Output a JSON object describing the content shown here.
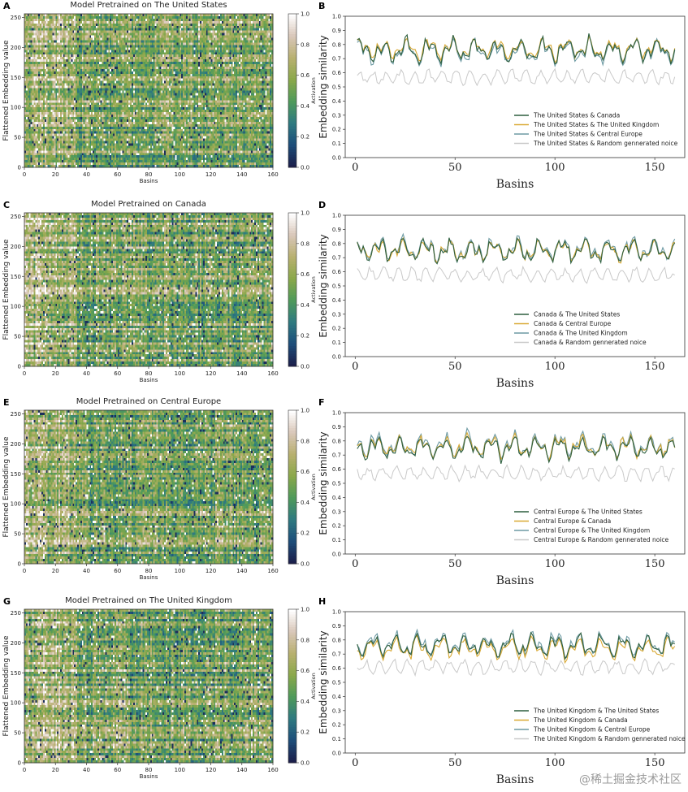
{
  "panels": {
    "heatmaps": [
      {
        "letter": "A",
        "title": "Model Pretrained on The United States"
      },
      {
        "letter": "C",
        "title": "Model Pretrained on Canada"
      },
      {
        "letter": "E",
        "title": "Model Pretrained on Central Europe"
      },
      {
        "letter": "G",
        "title": "Model Pretrained on The United Kingdom"
      }
    ],
    "similarity": [
      {
        "letter": "B"
      },
      {
        "letter": "D"
      },
      {
        "letter": "F"
      },
      {
        "letter": "H"
      }
    ]
  },
  "heatmap_axes": {
    "xlabel": "Basins",
    "ylabel": "Flattened Embedding value",
    "colorbar_label": "Activation",
    "x_ticks": [
      0,
      20,
      40,
      60,
      80,
      100,
      120,
      140,
      160
    ],
    "y_ticks": [
      0,
      50,
      100,
      150,
      200,
      250
    ],
    "colorbar_ticks": [
      "0.0",
      "0.2",
      "0.4",
      "0.6",
      "0.8",
      "1.0"
    ],
    "colormap": [
      "#1b1f4b",
      "#1d4e7a",
      "#2f7a80",
      "#4f9a5a",
      "#8aa84a",
      "#b8b06f",
      "#d8c6b8",
      "#ffffff"
    ]
  },
  "line_axes": {
    "xlabel": "Basins",
    "ylabel": "Embedding similarity",
    "x_ticks": [
      0,
      50,
      100,
      150
    ],
    "y_ticks": [
      "0.0",
      "0.1",
      "0.2",
      "0.3",
      "0.4",
      "0.5",
      "0.6",
      "0.7",
      "0.8",
      "0.9",
      "1.0"
    ]
  },
  "chart_data": [
    {
      "panel": "A",
      "type": "heatmap",
      "title": "Model Pretrained on The United States",
      "xlabel": "Basins",
      "ylabel": "Flattened Embedding value",
      "xlim": [
        0,
        160
      ],
      "ylim": [
        0,
        256
      ],
      "colorbar": {
        "label": "Activation",
        "range": [
          0,
          1
        ]
      }
    },
    {
      "panel": "B",
      "type": "line",
      "xlabel": "Basins",
      "ylabel": "Embedding similarity",
      "xlim": [
        -5,
        165
      ],
      "ylim": [
        0,
        1
      ],
      "legend": "bottom-right",
      "series": [
        {
          "name": "The United States & Canada",
          "color": "#2d5e3e",
          "mean": 0.76,
          "amp": 0.09
        },
        {
          "name": "The United States & The United Kingdom",
          "color": "#d9a933",
          "mean": 0.77,
          "amp": 0.08
        },
        {
          "name": "The United States & Central Europe",
          "color": "#6d9aa3",
          "mean": 0.75,
          "amp": 0.09
        },
        {
          "name": "The United States & Random gennerated noice",
          "color": "#c9c9c9",
          "mean": 0.57,
          "amp": 0.05
        }
      ]
    },
    {
      "panel": "C",
      "type": "heatmap",
      "title": "Model Pretrained on Canada",
      "xlabel": "Basins",
      "ylabel": "Flattened Embedding value",
      "xlim": [
        0,
        160
      ],
      "ylim": [
        0,
        256
      ],
      "colorbar": {
        "label": "Activation",
        "range": [
          0,
          1
        ]
      }
    },
    {
      "panel": "D",
      "type": "line",
      "xlabel": "Basins",
      "ylabel": "Embedding similarity",
      "xlim": [
        -5,
        165
      ],
      "ylim": [
        0,
        1
      ],
      "legend": "bottom-right",
      "series": [
        {
          "name": "Canada & The United States",
          "color": "#2d5e3e",
          "mean": 0.75,
          "amp": 0.09
        },
        {
          "name": "Canada & Central Europe",
          "color": "#d9a933",
          "mean": 0.75,
          "amp": 0.08
        },
        {
          "name": "Canada & The United Kingdom",
          "color": "#6d9aa3",
          "mean": 0.76,
          "amp": 0.09
        },
        {
          "name": "Canada & Random gennerated noice",
          "color": "#c9c9c9",
          "mean": 0.58,
          "amp": 0.05
        }
      ]
    },
    {
      "panel": "E",
      "type": "heatmap",
      "title": "Model Pretrained on Central Europe",
      "xlabel": "Basins",
      "ylabel": "Flattened Embedding value",
      "xlim": [
        0,
        160
      ],
      "ylim": [
        0,
        256
      ],
      "colorbar": {
        "label": "Activation",
        "range": [
          0,
          1
        ]
      }
    },
    {
      "panel": "F",
      "type": "line",
      "xlabel": "Basins",
      "ylabel": "Embedding similarity",
      "xlim": [
        -5,
        165
      ],
      "ylim": [
        0,
        1
      ],
      "legend": "bottom-right",
      "series": [
        {
          "name": "Central Europe & The United States",
          "color": "#2d5e3e",
          "mean": 0.75,
          "amp": 0.08
        },
        {
          "name": "Central Europe & Canada",
          "color": "#d9a933",
          "mean": 0.76,
          "amp": 0.08
        },
        {
          "name": "Central Europe & The United Kingdom",
          "color": "#6d9aa3",
          "mean": 0.77,
          "amp": 0.09
        },
        {
          "name": "Central Europe & Random gennerated noice",
          "color": "#c9c9c9",
          "mean": 0.57,
          "amp": 0.05
        }
      ]
    },
    {
      "panel": "G",
      "type": "heatmap",
      "title": "Model Pretrained on The United Kingdom",
      "xlabel": "Basins",
      "ylabel": "Flattened Embedding value",
      "xlim": [
        0,
        160
      ],
      "ylim": [
        0,
        256
      ],
      "colorbar": {
        "label": "Activation",
        "range": [
          0,
          1
        ]
      }
    },
    {
      "panel": "H",
      "type": "line",
      "xlabel": "Basins",
      "ylabel": "Embedding similarity",
      "xlim": [
        -5,
        165
      ],
      "ylim": [
        0,
        1
      ],
      "legend": "bottom-right",
      "series": [
        {
          "name": "The United Kingdom & The United States",
          "color": "#2d5e3e",
          "mean": 0.76,
          "amp": 0.08
        },
        {
          "name": "The United Kingdom & Canada",
          "color": "#d9a933",
          "mean": 0.74,
          "amp": 0.08
        },
        {
          "name": "The United Kingdom & Central Europe",
          "color": "#6d9aa3",
          "mean": 0.77,
          "amp": 0.09
        },
        {
          "name": "The United Kingdom & Random gennerated noice",
          "color": "#c9c9c9",
          "mean": 0.61,
          "amp": 0.05
        }
      ]
    }
  ],
  "watermark": "@稀土掘金技术社区"
}
